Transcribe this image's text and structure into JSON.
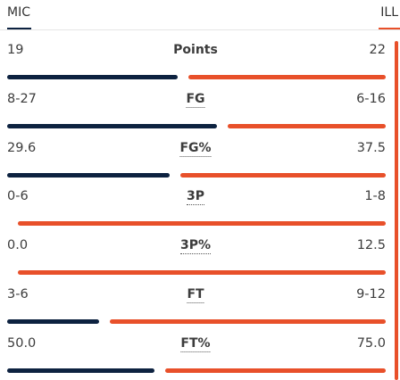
{
  "teams": {
    "away": "MIC",
    "home": "ILL"
  },
  "rows": [
    {
      "label": "Points",
      "away": "19",
      "home": "22"
    },
    {
      "label": "FG",
      "away": "8-27",
      "home": "6-16"
    },
    {
      "label": "FG%",
      "away": "29.6",
      "home": "37.5"
    },
    {
      "label": "3P",
      "away": "0-6",
      "home": "1-8"
    },
    {
      "label": "3P%",
      "away": "0.0",
      "home": "12.5"
    },
    {
      "label": "FT",
      "away": "3-6",
      "home": "9-12"
    },
    {
      "label": "FT%",
      "away": "50.0",
      "home": "75.0"
    }
  ]
}
